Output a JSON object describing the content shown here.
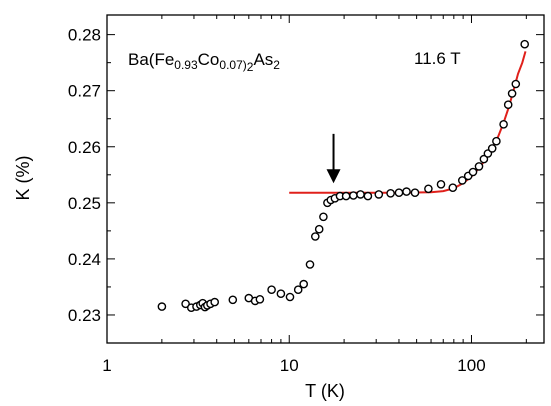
{
  "chart_data": {
    "type": "scatter",
    "title": "",
    "xlabel": "T (K)",
    "ylabel": "K (%)",
    "xscale": "log",
    "xlim": [
      1,
      250
    ],
    "ylim": [
      0.225,
      0.2835
    ],
    "xticks": [
      1,
      10,
      100
    ],
    "xtick_labels": [
      "1",
      "10",
      "100"
    ],
    "yticks": [
      0.23,
      0.24,
      0.25,
      0.26,
      0.27,
      0.28
    ],
    "ytick_labels": [
      "0.23",
      "0.24",
      "0.25",
      "0.26",
      "0.27",
      "0.28"
    ],
    "grid": false,
    "sample_label": {
      "prefix": "Ba(Fe",
      "fe_sub": "0.93",
      "co": "Co",
      "co_sub": "0.07)",
      "sub2": "2",
      "as": "As",
      "as_sub": "2"
    },
    "field_label": "11.6 T",
    "marker_color": "#000000",
    "fit_color": "#e0201b",
    "points": {
      "x": [
        2.0,
        2.7,
        2.9,
        3.1,
        3.25,
        3.35,
        3.45,
        3.55,
        3.7,
        3.9,
        4.9,
        6.0,
        6.5,
        6.9,
        8.0,
        9.0,
        10.1,
        11.2,
        12.0,
        13.0,
        13.9,
        14.6,
        15.4,
        16.2,
        16.9,
        17.8,
        19.0,
        20.5,
        22.5,
        24.6,
        27.0,
        31.0,
        36.0,
        40.0,
        44.0,
        49.0,
        58.0,
        68.0,
        79.0,
        89.0,
        96.0,
        102.0,
        110.0,
        117.0,
        123.0,
        130.0,
        137.0,
        150.0,
        159.0,
        167.0,
        175.0,
        196.0
      ],
      "y": [
        0.2315,
        0.232,
        0.2313,
        0.2315,
        0.2318,
        0.2321,
        0.2314,
        0.2317,
        0.232,
        0.2323,
        0.2327,
        0.233,
        0.2325,
        0.2328,
        0.2345,
        0.2338,
        0.2332,
        0.2345,
        0.2355,
        0.239,
        0.244,
        0.2453,
        0.2475,
        0.25,
        0.2505,
        0.2508,
        0.2512,
        0.2512,
        0.2513,
        0.2515,
        0.2512,
        0.2515,
        0.2517,
        0.2518,
        0.252,
        0.2518,
        0.2525,
        0.2533,
        0.2527,
        0.254,
        0.2548,
        0.2555,
        0.2565,
        0.2578,
        0.2588,
        0.2597,
        0.261,
        0.264,
        0.2675,
        0.2695,
        0.2712,
        0.2783
      ]
    },
    "fit_curve": {
      "x": [
        10,
        20,
        40,
        60,
        70,
        80,
        90,
        100,
        110,
        120,
        130,
        140,
        150,
        160,
        170,
        180,
        190,
        198
      ],
      "y": [
        0.2518,
        0.2518,
        0.2518,
        0.2519,
        0.2521,
        0.2526,
        0.2535,
        0.2547,
        0.2562,
        0.2578,
        0.2597,
        0.2618,
        0.2643,
        0.267,
        0.27,
        0.273,
        0.275,
        0.277
      ]
    },
    "arrow_annotation": {
      "x": 17.5,
      "y_from": 0.2623,
      "y_to": 0.2535
    }
  }
}
